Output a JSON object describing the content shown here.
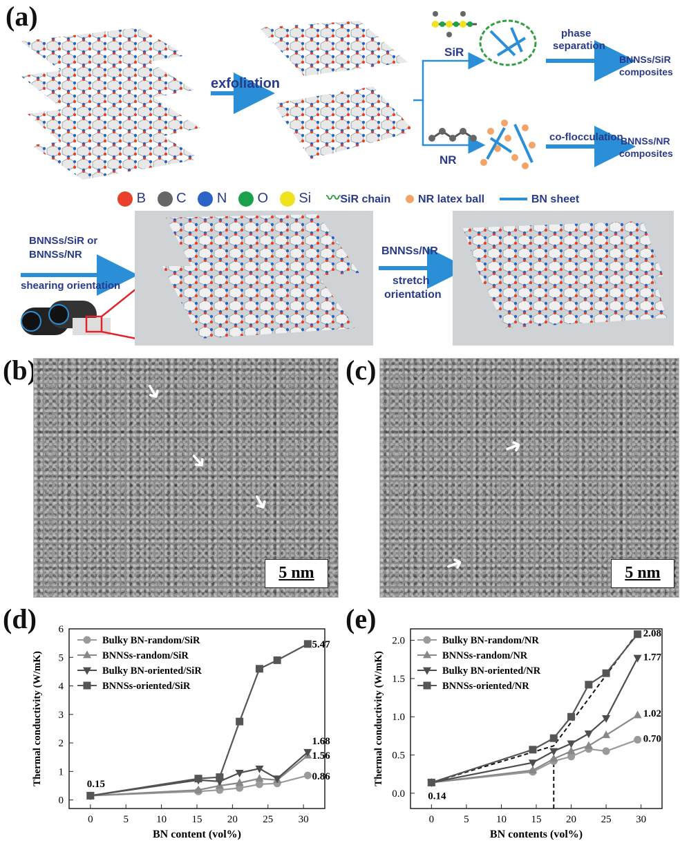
{
  "labels": {
    "a": "(a)",
    "b": "(b)",
    "c": "(c)",
    "d": "(d)",
    "e": "(e)"
  },
  "schematic": {
    "exfoliation": "exfoliation",
    "sir": "SiR",
    "nr": "NR",
    "phase_separation_1": "phase",
    "phase_separation_2": "separation",
    "co_flocculation": "co-flocculation",
    "sir_composites_1": "BNNSs/SiR",
    "sir_composites_2": "composites",
    "nr_composites_1": "BNNSs/NR",
    "nr_composites_2": "composites",
    "shear_1": "BNNSs/SiR or",
    "shear_2": "BNNSs/NR",
    "shear_3": "shearing orientation",
    "stretch_1": "BNNSs/NR",
    "stretch_2": "stretch",
    "stretch_3": "orientation"
  },
  "legend": {
    "B": "B",
    "C": "C",
    "N": "N",
    "O": "O",
    "Si": "Si",
    "sir_chain": "SiR chain",
    "nr_ball": "NR latex ball",
    "bn_sheet": "BN sheet",
    "colors": {
      "B": "#e8402c",
      "C": "#666666",
      "N": "#2b62c4",
      "O": "#19a24b",
      "Si": "#f2e21b",
      "chain": "#2fa040",
      "ball": "#f4a468",
      "sheet": "#2a8fd6"
    }
  },
  "tem": {
    "b_scale": "5 nm",
    "c_scale": "5 nm"
  },
  "chart_data": [
    {
      "type": "line",
      "ylabel": "Thermal conductivity (W/mK)",
      "xlabel": "BN content (vol%)",
      "xlim": [
        -3,
        33
      ],
      "ylim": [
        -0.3,
        6
      ],
      "xticks": [
        0,
        5,
        10,
        15,
        20,
        25,
        30
      ],
      "yticks": [
        0,
        1,
        2,
        3,
        4,
        5,
        6
      ],
      "series": [
        {
          "name": "Bulky BN-random/SiR",
          "marker": "circle",
          "color": "#9a9a9a",
          "x": [
            0,
            15.2,
            18.2,
            21,
            23.8,
            26.3,
            30.6
          ],
          "y": [
            0.15,
            0.3,
            0.35,
            0.42,
            0.55,
            0.58,
            0.86
          ]
        },
        {
          "name": "BNNSs-random/SiR",
          "marker": "triangle-up",
          "color": "#888888",
          "x": [
            0,
            15.2,
            18.2,
            21,
            23.8,
            26.3,
            30.6
          ],
          "y": [
            0.15,
            0.35,
            0.5,
            0.6,
            0.75,
            0.7,
            1.56
          ]
        },
        {
          "name": "Bulky BN-oriented/SiR",
          "marker": "triangle-down",
          "color": "#4d4d4d",
          "x": [
            0,
            15.2,
            18.2,
            21,
            23.8,
            26.3,
            30.6
          ],
          "y": [
            0.15,
            0.7,
            0.65,
            0.95,
            1.1,
            0.75,
            1.68
          ]
        },
        {
          "name": "BNNSs-oriented/SiR",
          "marker": "square",
          "color": "#555555",
          "x": [
            0,
            15.2,
            18.2,
            21,
            23.8,
            26.3,
            30.6
          ],
          "y": [
            0.15,
            0.75,
            0.8,
            2.75,
            4.6,
            4.9,
            5.47
          ]
        }
      ],
      "annotations": [
        "0.15",
        "5.47",
        "1.68",
        "1.56",
        "0.86"
      ]
    },
    {
      "type": "line",
      "ylabel": "Thermal conductivity (W/mK)",
      "xlabel": "BN contents (vol%)",
      "xlim": [
        -3,
        33
      ],
      "ylim": [
        -0.2,
        2.15
      ],
      "xticks": [
        0,
        5,
        10,
        15,
        20,
        25,
        30
      ],
      "yticks": [
        0.0,
        0.5,
        1.0,
        1.5,
        2.0
      ],
      "series": [
        {
          "name": "Bulky BN-random/NR",
          "marker": "circle",
          "color": "#9a9a9a",
          "x": [
            0,
            14.5,
            17.5,
            20,
            22.5,
            25,
            29.5
          ],
          "y": [
            0.14,
            0.28,
            0.42,
            0.48,
            0.58,
            0.55,
            0.7
          ]
        },
        {
          "name": "BNNSs-random/NR",
          "marker": "triangle-up",
          "color": "#888888",
          "x": [
            0,
            14.5,
            17.5,
            20,
            22.5,
            25,
            29.5
          ],
          "y": [
            0.14,
            0.3,
            0.45,
            0.55,
            0.62,
            0.76,
            1.02
          ]
        },
        {
          "name": "Bulky BN-oriented/NR",
          "marker": "triangle-down",
          "color": "#4d4d4d",
          "x": [
            0,
            14.5,
            17.5,
            20,
            22.5,
            25,
            29.5
          ],
          "y": [
            0.14,
            0.4,
            0.55,
            0.65,
            0.78,
            0.98,
            1.77
          ]
        },
        {
          "name": "BNNSs-oriented/NR",
          "marker": "square",
          "color": "#555555",
          "x": [
            0,
            14.5,
            17.5,
            20,
            22.5,
            25,
            29.5
          ],
          "y": [
            0.14,
            0.57,
            0.72,
            1.0,
            1.42,
            1.57,
            2.08
          ]
        }
      ],
      "annotations": [
        "0.14",
        "2.08",
        "1.77",
        "1.02",
        "0.70"
      ],
      "dashed_fit": {
        "x": [
          0,
          17.5,
          29.5
        ],
        "y": [
          0.14,
          0.62,
          2.1
        ]
      },
      "dashed_vline_x": 17.5
    }
  ]
}
